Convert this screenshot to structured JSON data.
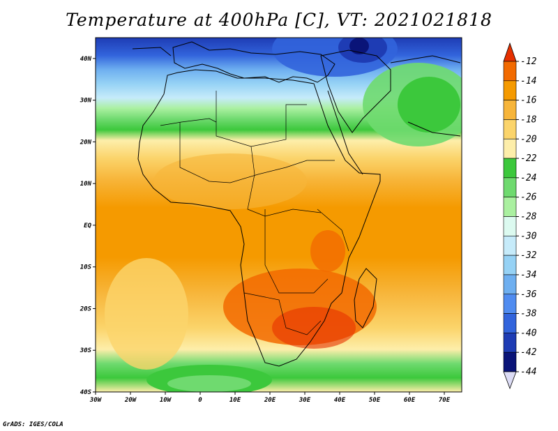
{
  "title": "Temperature at 400hPa [C], VT: 2021021818",
  "credit": "GrADS: IGES/COLA",
  "map": {
    "lon_range": [
      -30,
      75
    ],
    "lat_range": [
      -40,
      45
    ],
    "lon_ticks": [
      "30W",
      "20W",
      "10W",
      "0",
      "10E",
      "20E",
      "30E",
      "40E",
      "50E",
      "60E",
      "70E"
    ],
    "lon_tick_values": [
      -30,
      -20,
      -10,
      0,
      10,
      20,
      30,
      40,
      50,
      60,
      70
    ],
    "lat_ticks": [
      "40N",
      "30N",
      "20N",
      "10N",
      "EQ",
      "10S",
      "20S",
      "30S",
      "40S"
    ],
    "lat_tick_values": [
      40,
      30,
      20,
      10,
      0,
      -10,
      -20,
      -30,
      -40
    ]
  },
  "colorbar": {
    "labels": [
      "-12",
      "-14",
      "-16",
      "-18",
      "-20",
      "-22",
      "-24",
      "-26",
      "-28",
      "-30",
      "-32",
      "-34",
      "-36",
      "-38",
      "-40",
      "-42",
      "-44"
    ],
    "colors": [
      "#e63000",
      "#f26a00",
      "#f59a00",
      "#f7b53a",
      "#fbd46b",
      "#fdeeaa",
      "#3cc83c",
      "#6fda6f",
      "#aaf0a0",
      "#dcfaf0",
      "#c6ebfa",
      "#96d2f5",
      "#6eaff0",
      "#508cf0",
      "#3264dc",
      "#1e3cb4",
      "#0a1478"
    ],
    "top_arrow_color": "#e63000",
    "bottom_arrow_color": "#dcdcf5"
  }
}
